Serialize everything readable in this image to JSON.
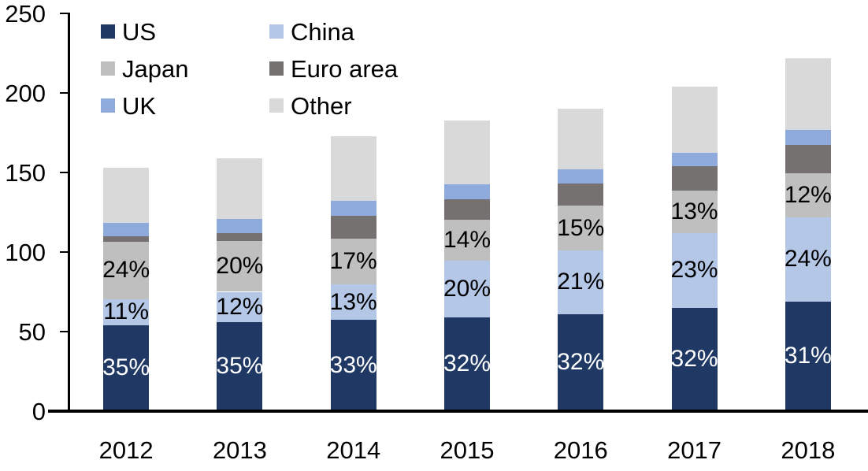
{
  "chart_data": {
    "type": "bar",
    "stacked": true,
    "title": "",
    "xlabel": "",
    "ylabel": "",
    "categories": [
      "2012",
      "2013",
      "2014",
      "2015",
      "2016",
      "2017",
      "2018"
    ],
    "ylim": [
      0,
      250
    ],
    "yticks": [
      "0",
      "50",
      "100",
      "150",
      "200",
      "250"
    ],
    "ytick_values": [
      0,
      50,
      100,
      150,
      200,
      250
    ],
    "grid": false,
    "legend_position": "upper-left-inside",
    "legend_columns": 2,
    "axis_color": "#000000",
    "series": [
      {
        "name": "US",
        "color": "#1F3864",
        "values": [
          54,
          56,
          57.5,
          59,
          61,
          65,
          69
        ],
        "labels": [
          "35%",
          "35%",
          "33%",
          "32%",
          "32%",
          "32%",
          "31%"
        ],
        "label_color": "#FFFFFF"
      },
      {
        "name": "China",
        "color": "#B4C7E7",
        "values": [
          16.5,
          19,
          22,
          35.5,
          40,
          47,
          53
        ],
        "labels": [
          "11%",
          "12%",
          "13%",
          "20%",
          "21%",
          "23%",
          "24%"
        ],
        "label_color": "#000000"
      },
      {
        "name": "Japan",
        "color": "#BFBFBF",
        "values": [
          36,
          32,
          29,
          26,
          28,
          26.5,
          27.5
        ],
        "labels": [
          "24%",
          "20%",
          "17%",
          "14%",
          "15%",
          "13%",
          "12%"
        ],
        "label_color": "#000000"
      },
      {
        "name": "Euro area",
        "color": "#767171",
        "values": [
          3.5,
          5,
          14.5,
          12.5,
          14,
          15.5,
          18
        ],
        "labels": null,
        "label_color": null
      },
      {
        "name": "UK",
        "color": "#8FAADC",
        "values": [
          8.5,
          9,
          9,
          9.5,
          9,
          8.5,
          9
        ],
        "labels": null,
        "label_color": null
      },
      {
        "name": "Other",
        "color": "#D9D9D9",
        "values": [
          34.5,
          38,
          41,
          40,
          38,
          41.5,
          45.5
        ],
        "labels": null,
        "label_color": null
      }
    ]
  }
}
